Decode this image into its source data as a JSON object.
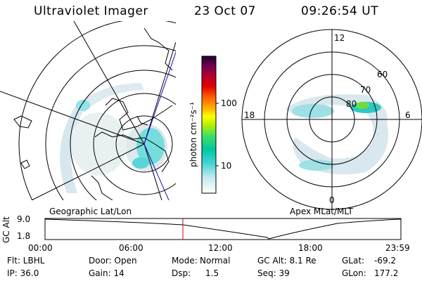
{
  "header": {
    "instrument": "Ultraviolet Imager",
    "date": "23 Oct 07",
    "time": "09:26:54 UT"
  },
  "colorbar": {
    "unit": "photon cm⁻²s⁻¹",
    "ticks": [
      "100",
      "10"
    ]
  },
  "left_map": {
    "label": "Geographic Lat/Lon"
  },
  "right_map": {
    "label": "Apex MLat/MLT",
    "mlt_labels": {
      "top": "12",
      "left": "18",
      "right": "6",
      "bottom": "0"
    },
    "lat_labels": [
      "60",
      "70",
      "80"
    ]
  },
  "timeline": {
    "axis_title": "GC Alt",
    "ymax": "9.0",
    "ymin": "1.8",
    "xticks": [
      "00:00",
      "06:00",
      "12:00",
      "18:00",
      "23:59"
    ],
    "marker_color": "#d40000"
  },
  "footer": {
    "flt": "Flt: LBHL",
    "door": "Door: Open",
    "mode_label": "Mode:",
    "mode_value": "Normal",
    "gc_alt": "GC Alt: 8.1 Re",
    "glat_label": "GLat:",
    "glat_value": "-69.2",
    "ip": "IP: 36.0",
    "gain": "Gain: 14",
    "dsp_label": "Dsp:",
    "dsp_value": "1.5",
    "seq": "Seq: 39",
    "glon_label": "GLon:",
    "glon_value": "177.2"
  }
}
